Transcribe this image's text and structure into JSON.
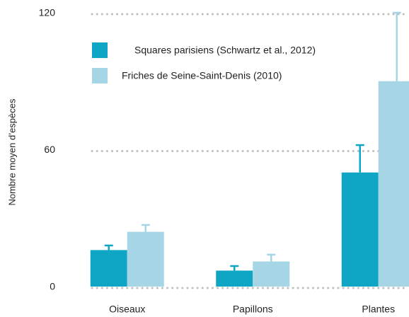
{
  "chart_data": {
    "type": "bar",
    "y_label": "Nombre moyen d’espèces",
    "categories": [
      "Oiseaux",
      "Papillons",
      "Plantes"
    ],
    "series": [
      {
        "name": "Squares parisiens (Schwartz et al., 2012)",
        "color": "#0fa6c6",
        "values": [
          16,
          7,
          50
        ],
        "errors": [
          2,
          2,
          12
        ]
      },
      {
        "name": "Friches de Seine-Saint-Denis (2010)",
        "color": "#a6d5e5",
        "values": [
          24,
          11,
          90
        ],
        "errors": [
          3,
          3,
          30
        ]
      }
    ],
    "ylim": [
      0,
      120
    ],
    "yticks": [
      0,
      60,
      120
    ],
    "grid": true,
    "legend": "top-left"
  }
}
